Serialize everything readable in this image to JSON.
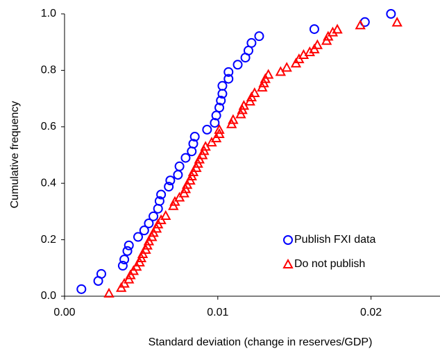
{
  "chart_data": {
    "type": "scatter",
    "x_label": "Standard deviation (change in reserves/GDP)",
    "y_label": "Cumulative frequency",
    "xlim": [
      0,
      0.0245
    ],
    "ylim": [
      0,
      1
    ],
    "xticks": [
      {
        "value": 0,
        "label": "0.00"
      },
      0.01,
      0.02
    ],
    "yticks": [
      {
        "value": 0,
        "label": "0.0"
      },
      0.2,
      0.4,
      0.6,
      0.8,
      {
        "value": 1,
        "label": "1.0"
      }
    ],
    "grid": false,
    "legend": "lower right",
    "series": [
      {
        "name": "Publish FXI data",
        "color": "#0000ff",
        "marker": "circle",
        "x": [
          0.0011,
          0.0022,
          0.0024,
          0.0038,
          0.0039,
          0.0041,
          0.0042,
          0.0048,
          0.0052,
          0.0055,
          0.0058,
          0.0061,
          0.0062,
          0.0063,
          0.0068,
          0.0069,
          0.0074,
          0.0075,
          0.0079,
          0.0083,
          0.0084,
          0.0085,
          0.0093,
          0.0098,
          0.0099,
          0.0101,
          0.0102,
          0.0103,
          0.0103,
          0.0107,
          0.0107,
          0.0113,
          0.0118,
          0.012,
          0.0122,
          0.0127,
          0.0163,
          0.0196,
          0.0213
        ],
        "values": [
          0.025,
          0.054,
          0.079,
          0.108,
          0.13,
          0.16,
          0.18,
          0.21,
          0.233,
          0.258,
          0.283,
          0.31,
          0.337,
          0.36,
          0.388,
          0.41,
          0.43,
          0.46,
          0.49,
          0.513,
          0.54,
          0.565,
          0.59,
          0.614,
          0.64,
          0.668,
          0.693,
          0.717,
          0.745,
          0.77,
          0.794,
          0.82,
          0.845,
          0.87,
          0.897,
          0.921,
          0.946,
          0.971,
          1.0
        ]
      },
      {
        "name": "Do not publish",
        "color": "#ff0000",
        "marker": "triangle",
        "x": [
          0.0029,
          0.0037,
          0.0039,
          0.0042,
          0.0043,
          0.0045,
          0.0047,
          0.0049,
          0.005,
          0.0051,
          0.0053,
          0.0054,
          0.0055,
          0.0057,
          0.0058,
          0.006,
          0.0061,
          0.0063,
          0.0066,
          0.0071,
          0.0072,
          0.0075,
          0.0078,
          0.0079,
          0.008,
          0.0082,
          0.0083,
          0.0084,
          0.0086,
          0.0087,
          0.0088,
          0.009,
          0.0091,
          0.0092,
          0.0096,
          0.0099,
          0.0101,
          0.0101,
          0.0109,
          0.011,
          0.0115,
          0.0116,
          0.0117,
          0.0121,
          0.0122,
          0.0124,
          0.0129,
          0.013,
          0.0131,
          0.0133,
          0.0141,
          0.0145,
          0.0151,
          0.0153,
          0.0156,
          0.016,
          0.0163,
          0.0165,
          0.0171,
          0.0172,
          0.0175,
          0.0178,
          0.0193,
          0.0217
        ],
        "values": [
          0.01,
          0.03,
          0.045,
          0.06,
          0.075,
          0.09,
          0.105,
          0.12,
          0.135,
          0.15,
          0.165,
          0.18,
          0.195,
          0.21,
          0.225,
          0.24,
          0.255,
          0.27,
          0.285,
          0.32,
          0.335,
          0.35,
          0.365,
          0.38,
          0.395,
          0.41,
          0.425,
          0.44,
          0.455,
          0.47,
          0.485,
          0.5,
          0.515,
          0.53,
          0.545,
          0.56,
          0.575,
          0.59,
          0.61,
          0.625,
          0.645,
          0.66,
          0.675,
          0.69,
          0.705,
          0.72,
          0.74,
          0.755,
          0.77,
          0.785,
          0.795,
          0.81,
          0.825,
          0.84,
          0.855,
          0.865,
          0.875,
          0.89,
          0.905,
          0.92,
          0.935,
          0.945,
          0.96,
          0.97
        ]
      }
    ]
  }
}
